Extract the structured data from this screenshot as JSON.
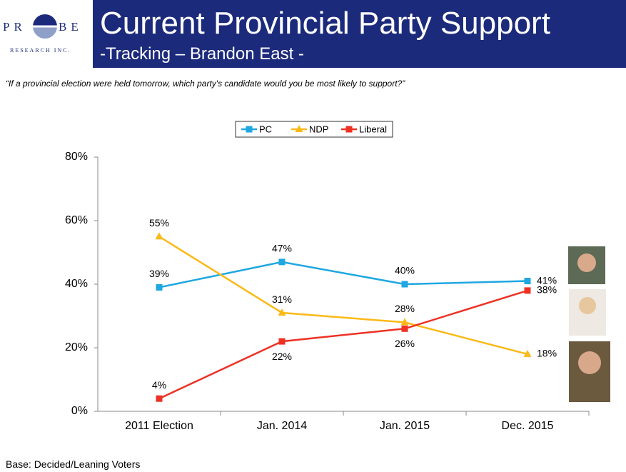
{
  "header": {
    "logo_left": "PR",
    "logo_right": "BE",
    "logo_sub": "RESEARCH INC.",
    "title": "Current Provincial Party Support",
    "subtitle": "-Tracking – Brandon East -"
  },
  "question": "“If a provincial election were held tomorrow, which party's candidate would you be most likely to support?”",
  "footnote": "Base: Decided/Leaning Voters",
  "chart_data": {
    "type": "line",
    "categories": [
      "2011 Election",
      "Jan. 2014",
      "Jan. 2015",
      "Dec. 2015"
    ],
    "series": [
      {
        "name": "PC",
        "color": "#1ea7e1",
        "marker": "square",
        "values": [
          39,
          47,
          40,
          41
        ],
        "value_labels": [
          "39%",
          "47%",
          "40%",
          "41%"
        ]
      },
      {
        "name": "NDP",
        "color": "#fbb917",
        "marker": "triangle",
        "values": [
          55,
          31,
          28,
          18
        ],
        "value_labels": [
          "55%",
          "31%",
          "28%",
          "18%"
        ]
      },
      {
        "name": "Liberal",
        "color": "#ee3124",
        "marker": "square",
        "values": [
          4,
          22,
          26,
          38
        ],
        "value_labels": [
          "4%",
          "22%",
          "26%",
          "38%"
        ]
      }
    ],
    "ylim": [
      0,
      80
    ],
    "yticks": [
      {
        "value": 0,
        "label": "0%"
      },
      {
        "value": 20,
        "label": "20%"
      },
      {
        "value": 40,
        "label": "40%"
      },
      {
        "value": 60,
        "label": "60%"
      },
      {
        "value": 80,
        "label": "80%"
      }
    ],
    "legend": "top"
  }
}
